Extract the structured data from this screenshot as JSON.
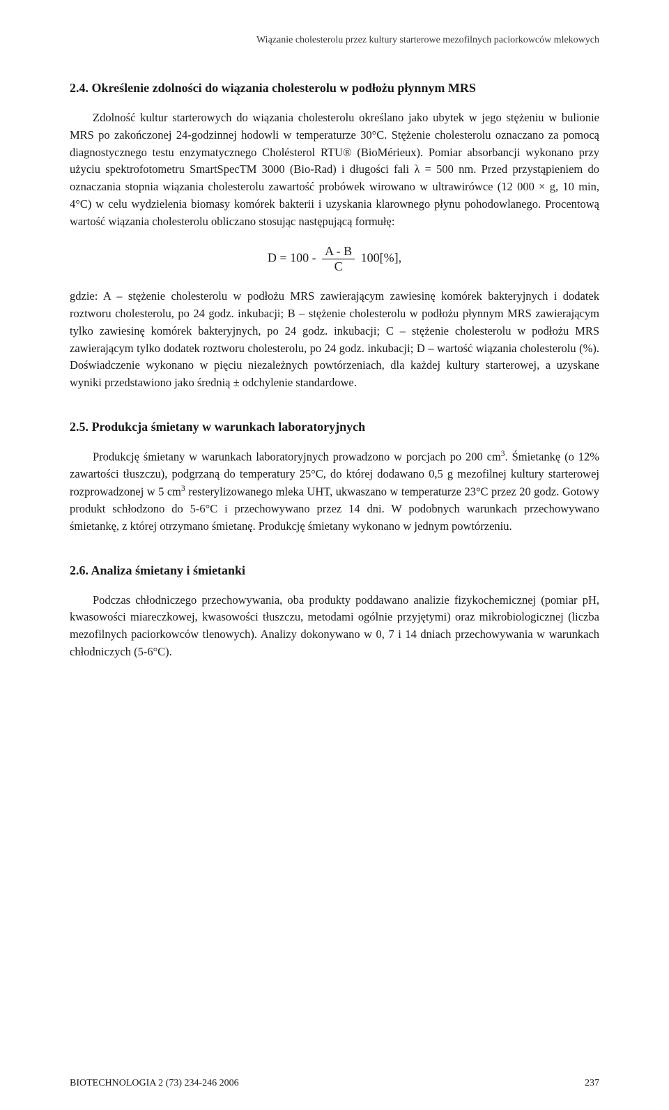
{
  "running_header": "Wiązanie cholesterolu przez kultury starterowe mezofilnych paciorkowców mlekowych",
  "section_24": {
    "heading": "2.4. Określenie zdolności do wiązania cholesterolu w podłożu płynnym MRS",
    "para1": "Zdolność kultur starterowych do wiązania cholesterolu określano jako ubytek w jego stężeniu w bulionie MRS po zakończonej 24-godzinnej hodowli w temperaturze 30°C. Stężenie cholesterolu oznaczano za pomocą diagnostycznego testu enzymatycznego Cholésterol RTU® (BioMérieux). Pomiar absorbancji wykonano przy użyciu spektrofotometru SmartSpecTM 3000 (Bio-Rad) i długości fali λ = 500 nm. Przed przystąpieniem do oznaczania stopnia wiązania cholesterolu zawartość probówek wirowano w ultrawirówce (12 000 × g, 10 min, 4°C) w celu wydzielenia biomasy komórek bakterii i uzyskania klarownego płynu pohodowlanego. Procentową wartość wiązania cholesterolu obliczano stosując następującą formułę:",
    "formula_lhs": "D = 100 -",
    "formula_num": "A - B",
    "formula_den": "C",
    "formula_rhs": "100[%],",
    "para2": "gdzie: A – stężenie cholesterolu w podłożu MRS zawierającym zawiesinę komórek bakteryjnych i dodatek roztworu cholesterolu, po 24 godz. inkubacji; B – stężenie cholesterolu w podłożu płynnym MRS zawierającym tylko zawiesinę komórek bakteryjnych, po 24 godz. inkubacji; C – stężenie cholesterolu w podłożu MRS zawierającym tylko dodatek roztworu cholesterolu, po 24 godz. inkubacji; D – wartość wiązania cholesterolu (%). Doświadczenie wykonano w pięciu niezależnych powtórzeniach, dla każdej kultury starterowej, a uzyskane wyniki przedstawiono jako średnią ± odchylenie standardowe."
  },
  "section_25": {
    "heading": "2.5. Produkcja śmietany w warunkach laboratoryjnych",
    "para1_part1": "Produkcję śmietany w warunkach laboratoryjnych prowadzono w porcjach po 200 cm",
    "para1_sup1": "3",
    "para1_part2": ". Śmietankę (o 12% zawartości tłuszczu), podgrzaną do temperatury 25°C, do której dodawano 0,5 g mezofilnej kultury starterowej rozprowadzonej w 5 cm",
    "para1_sup2": "3",
    "para1_part3": " resterylizowanego mleka UHT, ukwaszano w temperaturze 23°C przez 20 godz. Gotowy produkt schłodzono do 5-6°C i przechowywano przez 14 dni. W podobnych warunkach przechowywano śmietankę, z której otrzymano śmietanę. Produkcję śmietany wykonano w jednym powtórzeniu."
  },
  "section_26": {
    "heading": "2.6. Analiza śmietany i śmietanki",
    "para1": "Podczas chłodniczego przechowywania, oba produkty poddawano analizie fizykochemicznej (pomiar pH, kwasowości miareczkowej, kwasowości tłuszczu, metodami ogólnie przyjętymi) oraz mikrobiologicznej (liczba mezofilnych paciorkowców tlenowych). Analizy dokonywano w 0, 7 i 14 dniach przechowywania w warunkach chłodniczych (5-6°C)."
  },
  "footer": {
    "journal": "BIOTECHNOLOGIA 2 (73) 234-246 2006",
    "page": "237"
  }
}
